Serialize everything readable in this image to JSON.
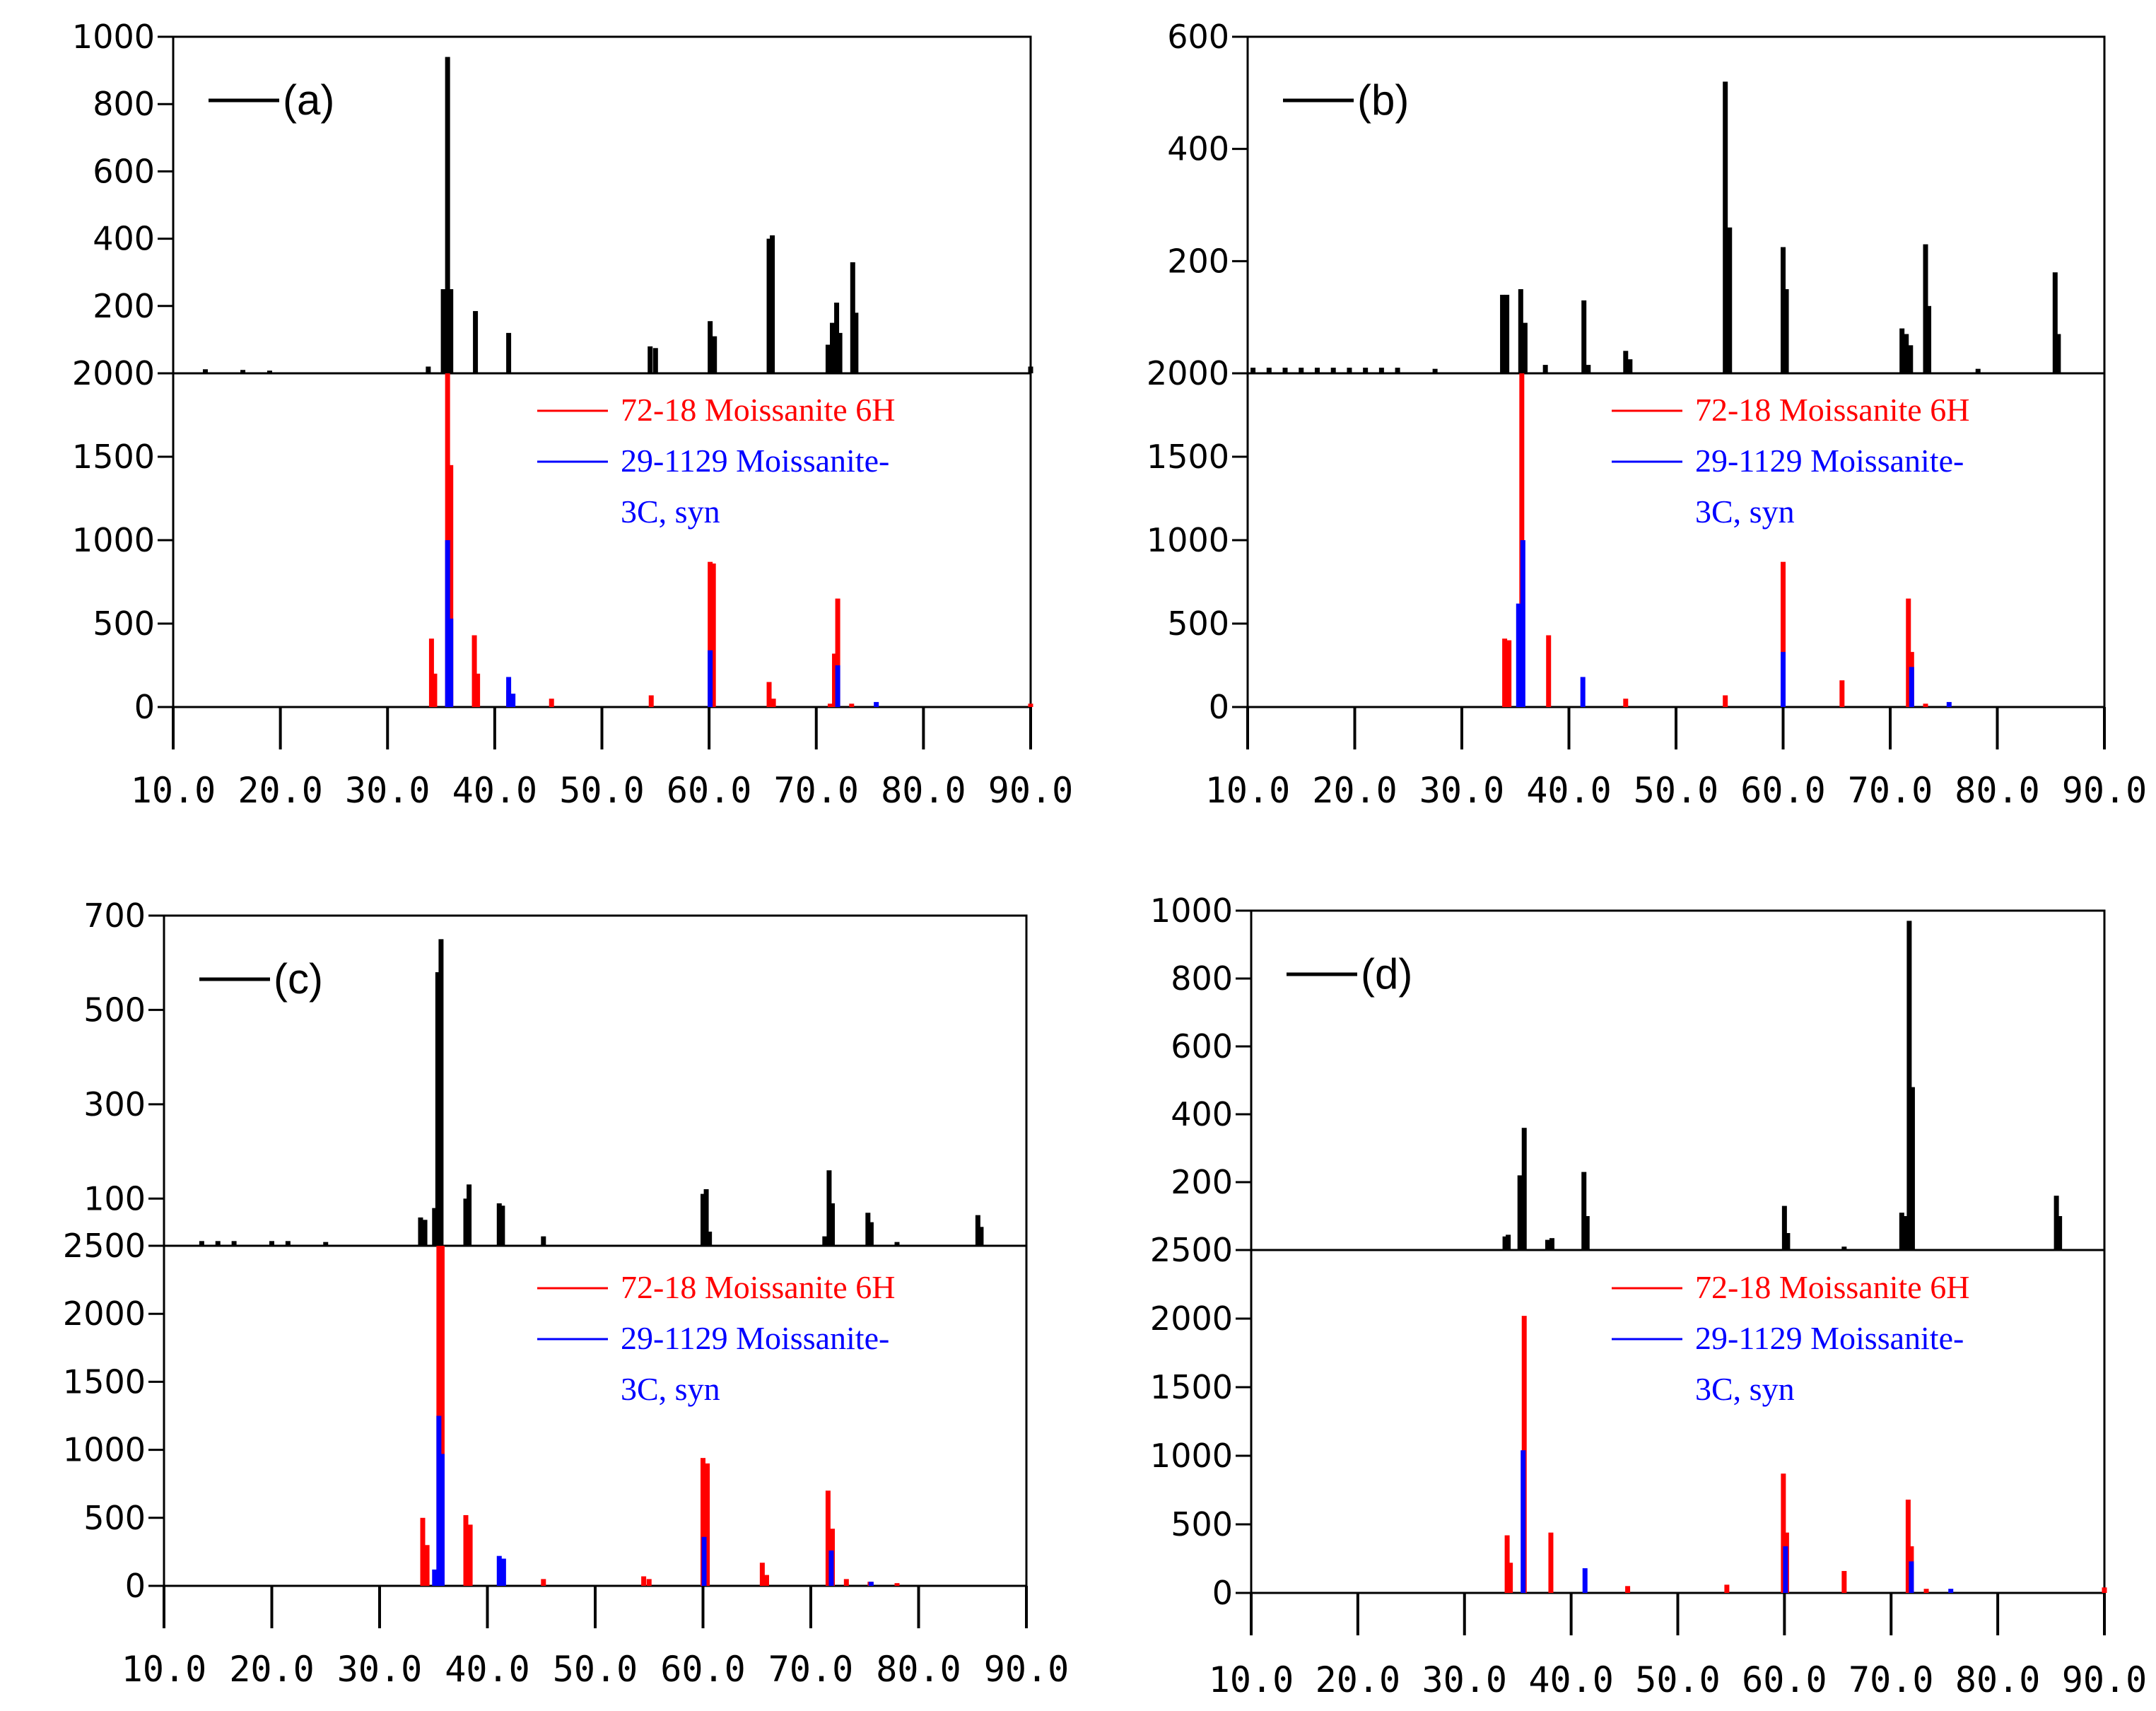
{
  "colors": {
    "measured": "#000000",
    "moissanite_6h": "#ff0000",
    "moissanite_3c": "#0000ff"
  },
  "legend": {
    "ref_6h": "72-18 Moissanite 6H",
    "ref_3c_line1": "29-1129 Moissanite-",
    "ref_3c_line2": "3C, syn"
  },
  "chart_data": [
    {
      "type": "bar",
      "panel": "(a)",
      "xlim": [
        10,
        90
      ],
      "x_ticks": [
        10,
        20,
        30,
        40,
        50,
        60,
        70,
        80,
        90
      ],
      "x_tick_labels": [
        "10.0",
        "20.0",
        "30.0",
        "40.0",
        "50.0",
        "60.0",
        "70.0",
        "80.0",
        "90.0"
      ],
      "measured": {
        "ylim": [
          0,
          1000
        ],
        "y_ticks": [
          200,
          400,
          600,
          800,
          1000
        ],
        "y_tick_labels": [
          "200",
          "400",
          "600",
          "800",
          "1000"
        ],
        "peaks": [
          [
            13,
            12
          ],
          [
            16.5,
            10
          ],
          [
            19,
            8
          ],
          [
            33.8,
            20
          ],
          [
            35.2,
            250
          ],
          [
            35.6,
            940
          ],
          [
            35.9,
            250
          ],
          [
            38.2,
            185
          ],
          [
            41.3,
            120
          ],
          [
            54.5,
            80
          ],
          [
            55,
            75
          ],
          [
            60.1,
            155
          ],
          [
            60.5,
            110
          ],
          [
            65.6,
            400
          ],
          [
            65.9,
            410
          ],
          [
            71.1,
            85
          ],
          [
            71.5,
            150
          ],
          [
            71.9,
            210
          ],
          [
            72.2,
            120
          ],
          [
            73.4,
            330
          ],
          [
            73.7,
            180
          ],
          [
            90,
            20
          ]
        ]
      },
      "reference": {
        "ylim": [
          0,
          2000
        ],
        "y_ticks": [
          0,
          500,
          1000,
          1500,
          2000
        ],
        "y_tick_labels": [
          "0",
          "500",
          "1000",
          "1500",
          "2000"
        ],
        "moissanite_6h": [
          [
            34.1,
            410
          ],
          [
            34.4,
            200
          ],
          [
            35.6,
            2000
          ],
          [
            35.9,
            1450
          ],
          [
            38.1,
            430
          ],
          [
            38.4,
            200
          ],
          [
            41.3,
            100
          ],
          [
            45.3,
            50
          ],
          [
            54.6,
            70
          ],
          [
            60.1,
            870
          ],
          [
            60.4,
            860
          ],
          [
            65.6,
            150
          ],
          [
            66,
            50
          ],
          [
            71.3,
            20
          ],
          [
            71.7,
            320
          ],
          [
            72,
            650
          ],
          [
            73.3,
            20
          ],
          [
            90,
            20
          ]
        ],
        "moissanite_3c": [
          [
            35.6,
            1000
          ],
          [
            35.9,
            530
          ],
          [
            41.3,
            180
          ],
          [
            41.7,
            80
          ],
          [
            60.1,
            340
          ],
          [
            72,
            250
          ],
          [
            75.6,
            30
          ]
        ]
      }
    },
    {
      "type": "bar",
      "panel": "(b)",
      "xlim": [
        10,
        90
      ],
      "x_ticks": [
        10,
        20,
        30,
        40,
        50,
        60,
        70,
        80,
        90
      ],
      "x_tick_labels": [
        "10.0",
        "20.0",
        "30.0",
        "40.0",
        "50.0",
        "60.0",
        "70.0",
        "80.0",
        "90.0"
      ],
      "measured": {
        "ylim": [
          0,
          600
        ],
        "y_ticks": [
          200,
          400,
          600
        ],
        "y_tick_labels": [
          "200",
          "400",
          "600"
        ],
        "peaks": [
          [
            10.5,
            10
          ],
          [
            12,
            10
          ],
          [
            13.5,
            10
          ],
          [
            15,
            10
          ],
          [
            16.5,
            10
          ],
          [
            18,
            10
          ],
          [
            19.5,
            10
          ],
          [
            21,
            10
          ],
          [
            22.5,
            10
          ],
          [
            24,
            10
          ],
          [
            27.5,
            8
          ],
          [
            33.8,
            140
          ],
          [
            34.2,
            140
          ],
          [
            35.5,
            150
          ],
          [
            35.9,
            90
          ],
          [
            37.8,
            15
          ],
          [
            41.4,
            130
          ],
          [
            41.8,
            15
          ],
          [
            45.3,
            40
          ],
          [
            45.7,
            25
          ],
          [
            54.6,
            520
          ],
          [
            55,
            260
          ],
          [
            60,
            225
          ],
          [
            60.3,
            150
          ],
          [
            71.1,
            80
          ],
          [
            71.5,
            70
          ],
          [
            71.9,
            50
          ],
          [
            73.3,
            230
          ],
          [
            73.6,
            120
          ],
          [
            78.2,
            8
          ],
          [
            85.4,
            180
          ],
          [
            85.7,
            70
          ]
        ]
      },
      "reference": {
        "ylim": [
          0,
          2000
        ],
        "y_ticks": [
          0,
          500,
          1000,
          1500,
          2000
        ],
        "y_tick_labels": [
          "0",
          "500",
          "1000",
          "1500",
          "2000"
        ],
        "moissanite_6h": [
          [
            34,
            410
          ],
          [
            34.4,
            400
          ],
          [
            35.6,
            2000
          ],
          [
            38.1,
            430
          ],
          [
            45.3,
            50
          ],
          [
            54.6,
            70
          ],
          [
            60,
            870
          ],
          [
            65.5,
            160
          ],
          [
            71.7,
            650
          ],
          [
            72,
            330
          ],
          [
            73.3,
            20
          ]
        ],
        "moissanite_3c": [
          [
            35.3,
            620
          ],
          [
            35.7,
            1000
          ],
          [
            41.3,
            180
          ],
          [
            60,
            330
          ],
          [
            72,
            240
          ],
          [
            75.5,
            30
          ]
        ]
      }
    },
    {
      "type": "bar",
      "panel": "(c)",
      "xlim": [
        10,
        90
      ],
      "x_ticks": [
        10,
        20,
        30,
        40,
        50,
        60,
        70,
        80,
        90
      ],
      "x_tick_labels": [
        "10.0",
        "20.0",
        "30.0",
        "40.0",
        "50.0",
        "60.0",
        "70.0",
        "80.0",
        "90.0"
      ],
      "measured": {
        "ylim": [
          0,
          700
        ],
        "y_ticks": [
          100,
          300,
          500,
          700
        ],
        "y_tick_labels": [
          "100",
          "300",
          "500",
          "700"
        ],
        "peaks": [
          [
            13.5,
            10
          ],
          [
            15,
            10
          ],
          [
            16.5,
            10
          ],
          [
            20,
            10
          ],
          [
            21.5,
            10
          ],
          [
            25,
            8
          ],
          [
            33.8,
            60
          ],
          [
            34.2,
            55
          ],
          [
            35.1,
            80
          ],
          [
            35.4,
            580
          ],
          [
            35.7,
            650
          ],
          [
            38,
            100
          ],
          [
            38.3,
            130
          ],
          [
            41.1,
            90
          ],
          [
            41.4,
            85
          ],
          [
            45.2,
            20
          ],
          [
            60,
            110
          ],
          [
            60.3,
            120
          ],
          [
            60.6,
            30
          ],
          [
            71.3,
            20
          ],
          [
            71.7,
            160
          ],
          [
            72,
            90
          ],
          [
            75.3,
            70
          ],
          [
            75.6,
            50
          ],
          [
            78,
            8
          ],
          [
            85.5,
            65
          ],
          [
            85.8,
            40
          ]
        ]
      },
      "reference": {
        "ylim": [
          0,
          2500
        ],
        "y_ticks": [
          0,
          500,
          1000,
          1500,
          2000,
          2500
        ],
        "y_tick_labels": [
          "0",
          "500",
          "1000",
          "1500",
          "2000",
          "2500"
        ],
        "moissanite_6h": [
          [
            34,
            500
          ],
          [
            34.4,
            300
          ],
          [
            35.5,
            2500
          ],
          [
            35.8,
            2500
          ],
          [
            38,
            520
          ],
          [
            38.4,
            450
          ],
          [
            41.2,
            200
          ],
          [
            45.2,
            50
          ],
          [
            54.5,
            70
          ],
          [
            55,
            50
          ],
          [
            60,
            940
          ],
          [
            60.4,
            900
          ],
          [
            65.5,
            170
          ],
          [
            65.9,
            80
          ],
          [
            71.6,
            700
          ],
          [
            72,
            420
          ],
          [
            73.3,
            50
          ],
          [
            75.5,
            30
          ],
          [
            78,
            20
          ]
        ],
        "moissanite_3c": [
          [
            35.1,
            120
          ],
          [
            35.5,
            1250
          ],
          [
            35.8,
            970
          ],
          [
            41.1,
            220
          ],
          [
            41.5,
            200
          ],
          [
            60.1,
            360
          ],
          [
            71.9,
            260
          ],
          [
            75.6,
            30
          ]
        ]
      }
    },
    {
      "type": "bar",
      "panel": "(d)",
      "xlim": [
        10,
        90
      ],
      "x_ticks": [
        10,
        20,
        30,
        40,
        50,
        60,
        70,
        80,
        90
      ],
      "x_tick_labels": [
        "10.0",
        "20.0",
        "30.0",
        "40.0",
        "50.0",
        "60.0",
        "70.0",
        "80.0",
        "90.0"
      ],
      "measured": {
        "ylim": [
          0,
          1000
        ],
        "y_ticks": [
          200,
          400,
          600,
          800,
          1000
        ],
        "y_tick_labels": [
          "200",
          "400",
          "600",
          "800",
          "1000"
        ],
        "peaks": [
          [
            33.8,
            40
          ],
          [
            34.1,
            45
          ],
          [
            35.2,
            220
          ],
          [
            35.6,
            360
          ],
          [
            37.8,
            30
          ],
          [
            38.2,
            35
          ],
          [
            41.2,
            230
          ],
          [
            41.5,
            100
          ],
          [
            60,
            130
          ],
          [
            60.3,
            50
          ],
          [
            65.6,
            10
          ],
          [
            71,
            110
          ],
          [
            71.4,
            100
          ],
          [
            71.7,
            970
          ],
          [
            72,
            480
          ],
          [
            85.5,
            160
          ],
          [
            85.8,
            100
          ]
        ]
      },
      "reference": {
        "ylim": [
          0,
          2500
        ],
        "y_ticks": [
          0,
          500,
          1000,
          1500,
          2000,
          2500
        ],
        "y_tick_labels": [
          "0",
          "500",
          "1000",
          "1500",
          "2000",
          "2500"
        ],
        "moissanite_6h": [
          [
            34,
            420
          ],
          [
            34.3,
            220
          ],
          [
            35.6,
            2020
          ],
          [
            38.1,
            440
          ],
          [
            45.3,
            50
          ],
          [
            54.6,
            60
          ],
          [
            59.9,
            870
          ],
          [
            60.2,
            440
          ],
          [
            65.6,
            160
          ],
          [
            71.6,
            680
          ],
          [
            71.9,
            340
          ],
          [
            73.3,
            30
          ],
          [
            90,
            40
          ]
        ],
        "moissanite_3c": [
          [
            35.5,
            1040
          ],
          [
            41.3,
            180
          ],
          [
            60.1,
            340
          ],
          [
            71.9,
            230
          ],
          [
            75.6,
            30
          ]
        ]
      }
    }
  ]
}
